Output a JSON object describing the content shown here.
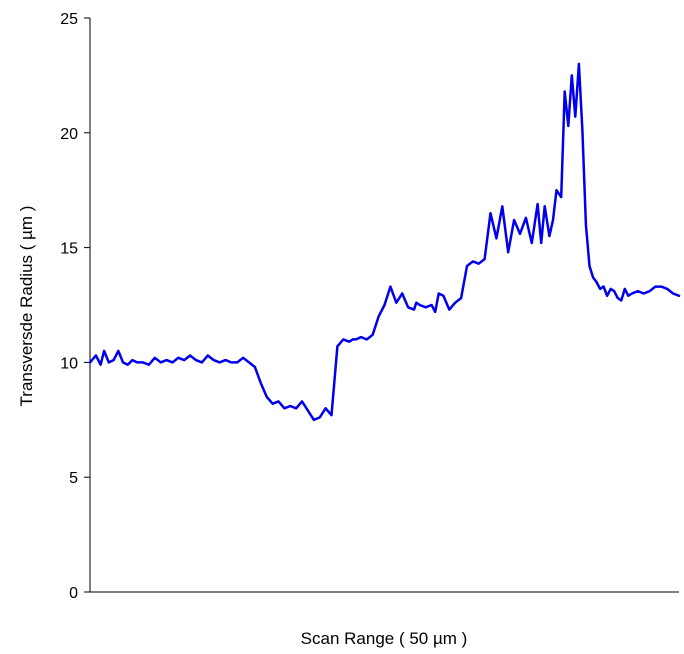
{
  "chart_data": {
    "type": "line",
    "title": "",
    "xlabel": "Scan Range ( 50 µm )",
    "ylabel": "Transversde Radius ( µm )",
    "xlim": [
      0,
      50
    ],
    "ylim": [
      0,
      25
    ],
    "y_ticks": [
      0,
      5,
      10,
      15,
      20,
      25
    ],
    "y_tick_labels": [
      "0",
      "5",
      "10",
      "15",
      "20",
      "25"
    ],
    "x_ticks_shown": false,
    "grid": false,
    "legend": "none",
    "series": [
      {
        "color": "#0000ee",
        "x": [
          0,
          0.5,
          0.9,
          1.2,
          1.6,
          2.0,
          2.4,
          2.8,
          3.2,
          3.6,
          4.0,
          4.5,
          5.0,
          5.5,
          6.0,
          6.5,
          7.0,
          7.5,
          8.0,
          8.5,
          9.0,
          9.5,
          10.0,
          10.5,
          11.0,
          11.5,
          12.0,
          12.5,
          13.0,
          13.5,
          14.0,
          14.5,
          15.0,
          15.5,
          16.0,
          16.5,
          17.0,
          17.5,
          18.0,
          18.5,
          19.0,
          19.5,
          20.0,
          20.5,
          21.0,
          21.5,
          22.0,
          22.3,
          22.6,
          23.0,
          23.5,
          24.0,
          24.5,
          25.0,
          25.5,
          26.0,
          26.5,
          27.0,
          27.5,
          27.7,
          28.0,
          28.5,
          29.0,
          29.3,
          29.6,
          30.0,
          30.5,
          31.0,
          31.5,
          32.0,
          32.5,
          33.0,
          33.5,
          34.0,
          34.5,
          35.0,
          35.5,
          36.0,
          36.5,
          37.0,
          37.5,
          38.0,
          38.3,
          38.6,
          39.0,
          39.3,
          39.6,
          40.0,
          40.3,
          40.6,
          40.9,
          41.2,
          41.5,
          41.8,
          42.1,
          42.4,
          42.7,
          43.0,
          43.3,
          43.6,
          43.9,
          44.2,
          44.5,
          44.8,
          45.1,
          45.4,
          45.7,
          46.0,
          46.5,
          47.0,
          47.5,
          48.0,
          48.5,
          49.0,
          49.5,
          50.0
        ],
        "y": [
          10.0,
          10.3,
          9.9,
          10.5,
          10.0,
          10.1,
          10.5,
          10.0,
          9.9,
          10.1,
          10.0,
          10.0,
          9.9,
          10.2,
          10.0,
          10.1,
          10.0,
          10.2,
          10.1,
          10.3,
          10.1,
          10.0,
          10.3,
          10.1,
          10.0,
          10.1,
          10.0,
          10.0,
          10.2,
          10.0,
          9.8,
          9.1,
          8.5,
          8.2,
          8.3,
          8.0,
          8.1,
          8.0,
          8.3,
          7.9,
          7.5,
          7.6,
          8.0,
          7.7,
          10.7,
          11.0,
          10.9,
          11.0,
          11.0,
          11.1,
          11.0,
          11.2,
          12.0,
          12.5,
          13.3,
          12.6,
          13.0,
          12.4,
          12.3,
          12.6,
          12.5,
          12.4,
          12.5,
          12.2,
          13.0,
          12.9,
          12.3,
          12.6,
          12.8,
          14.2,
          14.4,
          14.3,
          14.5,
          16.5,
          15.4,
          16.8,
          14.8,
          16.2,
          15.6,
          16.3,
          15.2,
          16.9,
          15.2,
          16.8,
          15.5,
          16.2,
          17.5,
          17.2,
          21.8,
          20.3,
          22.5,
          20.7,
          23.0,
          20.1,
          16.0,
          14.2,
          13.7,
          13.5,
          13.2,
          13.3,
          12.9,
          13.2,
          13.1,
          12.8,
          12.7,
          13.2,
          12.9,
          13.0,
          13.1,
          13.0,
          13.1,
          13.3,
          13.3,
          13.2,
          13.0,
          12.9
        ]
      }
    ]
  }
}
